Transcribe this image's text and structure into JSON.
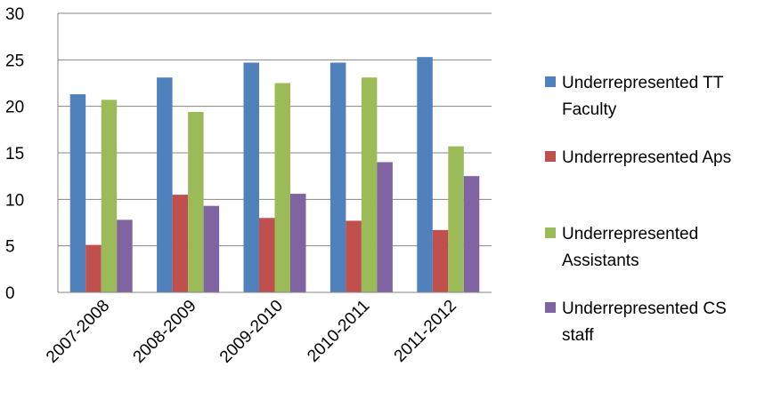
{
  "chart_data": {
    "type": "bar",
    "title": "",
    "xlabel": "",
    "ylabel": "",
    "categories": [
      "2007-2008",
      "2008-2009",
      "2009-2010",
      "2010-2011",
      "2011-2012"
    ],
    "ylim": [
      0,
      30
    ],
    "yticks": [
      0,
      5,
      10,
      15,
      20,
      25,
      30
    ],
    "grid": true,
    "legend_position": "right",
    "series": [
      {
        "name": "Underrepresented TT Faculty",
        "color": "#4F81BD",
        "values": [
          21.3,
          23.1,
          24.7,
          24.7,
          25.3
        ]
      },
      {
        "name": "Underrepresented Aps",
        "color": "#C0504D",
        "values": [
          5.1,
          10.5,
          8.0,
          7.7,
          6.7
        ]
      },
      {
        "name": "Underrepresented Assistants",
        "color": "#9BBB59",
        "values": [
          20.7,
          19.4,
          22.5,
          23.1,
          15.7
        ]
      },
      {
        "name": "Underrepresented CS staff",
        "color": "#8064A2",
        "values": [
          7.8,
          9.3,
          10.6,
          14.0,
          12.5
        ]
      }
    ]
  }
}
